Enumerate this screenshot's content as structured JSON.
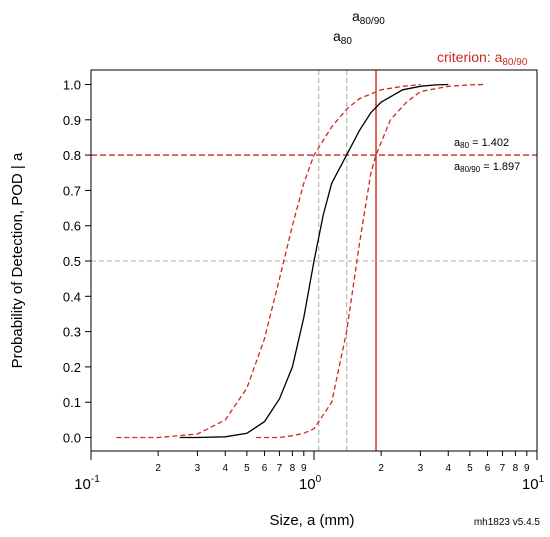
{
  "chart_data": {
    "type": "line",
    "title": "",
    "xlabel": "Size, a   (mm)",
    "ylabel": "Probability of Detection, POD | a",
    "x_scale": "log10",
    "xlim": [
      0.1,
      10
    ],
    "ylim": [
      0,
      1
    ],
    "y_ticks": [
      "0.0",
      "0.1",
      "0.2",
      "0.3",
      "0.4",
      "0.5",
      "0.6",
      "0.7",
      "0.8",
      "0.9",
      "1.0"
    ],
    "x_major_ticks": [
      {
        "value": 0.1,
        "base": "10",
        "exp": "-1"
      },
      {
        "value": 1,
        "base": "10",
        "exp": "0"
      },
      {
        "value": 10,
        "base": "10",
        "exp": "1"
      }
    ],
    "x_minor_ticks": [
      {
        "value": 0.2,
        "label": "2"
      },
      {
        "value": 0.3,
        "label": "3"
      },
      {
        "value": 0.4,
        "label": "4"
      },
      {
        "value": 0.5,
        "label": "5"
      },
      {
        "value": 0.6,
        "label": "6"
      },
      {
        "value": 0.7,
        "label": "7"
      },
      {
        "value": 0.8,
        "label": "8"
      },
      {
        "value": 0.9,
        "label": "9"
      },
      {
        "value": 2,
        "label": "2"
      },
      {
        "value": 3,
        "label": "3"
      },
      {
        "value": 4,
        "label": "4"
      },
      {
        "value": 5,
        "label": "5"
      },
      {
        "value": 6,
        "label": "6"
      },
      {
        "value": 7,
        "label": "7"
      },
      {
        "value": 8,
        "label": "8"
      },
      {
        "value": 9,
        "label": "9"
      }
    ],
    "series": [
      {
        "color": "#000000",
        "dash": "solid",
        "points": [
          [
            0.25,
            0.0
          ],
          [
            0.3,
            0.0
          ],
          [
            0.4,
            0.002
          ],
          [
            0.5,
            0.012
          ],
          [
            0.6,
            0.045
          ],
          [
            0.7,
            0.11
          ],
          [
            0.8,
            0.2
          ],
          [
            0.9,
            0.34
          ],
          [
            1.0,
            0.5
          ],
          [
            1.1,
            0.63
          ],
          [
            1.2,
            0.72
          ],
          [
            1.4,
            0.8
          ],
          [
            1.6,
            0.87
          ],
          [
            1.8,
            0.92
          ],
          [
            2.0,
            0.95
          ],
          [
            2.5,
            0.985
          ],
          [
            3.0,
            0.995
          ],
          [
            3.5,
            0.999
          ],
          [
            4.0,
            1.0
          ]
        ]
      },
      {
        "color": "#cc2a1e",
        "dash": "dashed",
        "points": [
          [
            0.13,
            0.0
          ],
          [
            0.2,
            0.0
          ],
          [
            0.3,
            0.01
          ],
          [
            0.4,
            0.05
          ],
          [
            0.5,
            0.14
          ],
          [
            0.6,
            0.28
          ],
          [
            0.7,
            0.45
          ],
          [
            0.8,
            0.6
          ],
          [
            0.9,
            0.72
          ],
          [
            1.0,
            0.8
          ],
          [
            1.2,
            0.88
          ],
          [
            1.4,
            0.93
          ],
          [
            1.6,
            0.96
          ],
          [
            2.0,
            0.985
          ],
          [
            2.5,
            0.995
          ],
          [
            3.0,
            1.0
          ]
        ]
      },
      {
        "color": "#cc2a1e",
        "dash": "dashed",
        "points": [
          [
            0.55,
            0.0
          ],
          [
            0.7,
            0.0
          ],
          [
            0.8,
            0.005
          ],
          [
            0.9,
            0.012
          ],
          [
            1.0,
            0.025
          ],
          [
            1.2,
            0.1
          ],
          [
            1.4,
            0.3
          ],
          [
            1.6,
            0.55
          ],
          [
            1.8,
            0.75
          ],
          [
            1.897,
            0.8
          ],
          [
            2.2,
            0.9
          ],
          [
            2.6,
            0.95
          ],
          [
            3.0,
            0.98
          ],
          [
            4.0,
            0.995
          ],
          [
            5.0,
            0.999
          ],
          [
            5.8,
            1.0
          ]
        ]
      }
    ],
    "reference_lines": [
      {
        "axis": "x",
        "value": 1.05,
        "color": "#b0b0b0",
        "dash": "dashed"
      },
      {
        "axis": "x",
        "value": 1.402,
        "color": "#b0b0b0",
        "dash": "dashed"
      },
      {
        "axis": "x",
        "value": 1.897,
        "color": "#cc2a1e",
        "dash": "solid"
      },
      {
        "axis": "y",
        "value": 0.5,
        "color": "#b0b0b0",
        "dash": "dashed"
      },
      {
        "axis": "y",
        "value": 0.8,
        "color": "#cc2a1e",
        "dash": "dashed"
      }
    ],
    "annotations": {
      "a80_90_top": {
        "base": "a",
        "sub": "80/90"
      },
      "a80_top": {
        "base": "a",
        "sub": "80"
      },
      "criterion": {
        "prefix": "criterion: a",
        "sub": "80/90"
      },
      "a80_value": {
        "base": "a",
        "sub": "80",
        "suffix": " = 1.402"
      },
      "a80_90_value": {
        "base": "a",
        "sub": "80/90",
        "suffix": " = 1.897"
      }
    },
    "footer_note": "mh1823 v5.4.5",
    "colors": {
      "curve": "#000000",
      "bounds": "#cc2a1e",
      "reference": "#b0b0b0",
      "axis": "#000000"
    }
  }
}
